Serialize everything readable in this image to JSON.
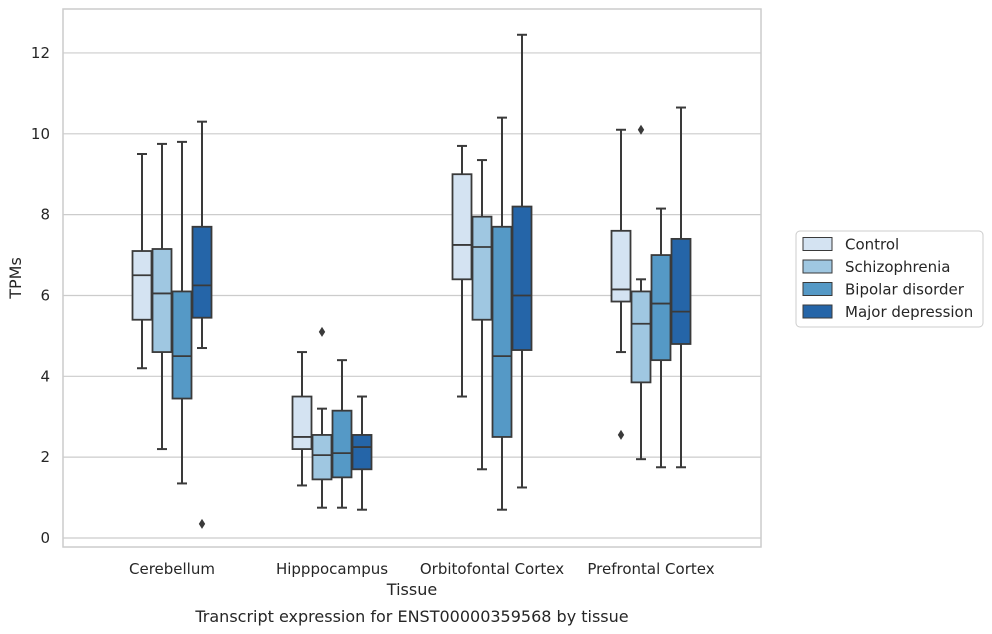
{
  "chart_data": {
    "type": "box",
    "xlabel": "Tissue",
    "ylabel": "TPMs",
    "caption": "Transcript expression for ENST00000359568 by tissue",
    "ylim": [
      -0.2,
      13.1
    ],
    "yticks": [
      0,
      2,
      4,
      6,
      8,
      10,
      12
    ],
    "grid": true,
    "legend_position": "right",
    "categories": [
      "Cerebellum",
      "Hipppocampus",
      "Orbitofontal Cortex",
      "Prefrontal Cortex"
    ],
    "series": [
      {
        "name": "Control",
        "color": "#d4e3f2",
        "boxes": [
          {
            "whisker_low": 4.2,
            "q1": 5.4,
            "median": 6.5,
            "q3": 7.1,
            "whisker_high": 9.5,
            "outliers": []
          },
          {
            "whisker_low": 1.3,
            "q1": 2.2,
            "median": 2.5,
            "q3": 3.5,
            "whisker_high": 4.6,
            "outliers": []
          },
          {
            "whisker_low": 3.5,
            "q1": 6.4,
            "median": 7.25,
            "q3": 9.0,
            "whisker_high": 9.7,
            "outliers": []
          },
          {
            "whisker_low": 4.6,
            "q1": 5.85,
            "median": 6.15,
            "q3": 7.6,
            "whisker_high": 10.1,
            "outliers": [
              2.55
            ]
          }
        ]
      },
      {
        "name": "Schizophrenia",
        "color": "#9fc7e1",
        "boxes": [
          {
            "whisker_low": 2.2,
            "q1": 4.6,
            "median": 6.05,
            "q3": 7.15,
            "whisker_high": 9.75,
            "outliers": []
          },
          {
            "whisker_low": 0.75,
            "q1": 1.45,
            "median": 2.05,
            "q3": 2.55,
            "whisker_high": 3.2,
            "outliers": [
              5.1
            ]
          },
          {
            "whisker_low": 1.7,
            "q1": 5.4,
            "median": 7.2,
            "q3": 7.95,
            "whisker_high": 9.35,
            "outliers": []
          },
          {
            "whisker_low": 1.95,
            "q1": 3.85,
            "median": 5.3,
            "q3": 6.1,
            "whisker_high": 6.4,
            "outliers": [
              10.1
            ]
          }
        ]
      },
      {
        "name": "Bipolar disorder",
        "color": "#5599c6",
        "boxes": [
          {
            "whisker_low": 1.35,
            "q1": 3.45,
            "median": 4.5,
            "q3": 6.1,
            "whisker_high": 9.8,
            "outliers": []
          },
          {
            "whisker_low": 0.75,
            "q1": 1.5,
            "median": 2.1,
            "q3": 3.15,
            "whisker_high": 4.4,
            "outliers": []
          },
          {
            "whisker_low": 0.7,
            "q1": 2.5,
            "median": 4.5,
            "q3": 7.7,
            "whisker_high": 10.4,
            "outliers": []
          },
          {
            "whisker_low": 1.75,
            "q1": 4.4,
            "median": 5.8,
            "q3": 7.0,
            "whisker_high": 8.15,
            "outliers": []
          }
        ]
      },
      {
        "name": "Major depression",
        "color": "#2565a8",
        "boxes": [
          {
            "whisker_low": 4.7,
            "q1": 5.45,
            "median": 6.25,
            "q3": 7.7,
            "whisker_high": 10.3,
            "outliers": [
              0.35
            ]
          },
          {
            "whisker_low": 0.7,
            "q1": 1.7,
            "median": 2.25,
            "q3": 2.55,
            "whisker_high": 3.5,
            "outliers": []
          },
          {
            "whisker_low": 1.25,
            "q1": 4.65,
            "median": 6.0,
            "q3": 8.2,
            "whisker_high": 12.45,
            "outliers": []
          },
          {
            "whisker_low": 1.75,
            "q1": 4.8,
            "median": 5.6,
            "q3": 7.4,
            "whisker_high": 10.65,
            "outliers": []
          }
        ]
      }
    ]
  }
}
